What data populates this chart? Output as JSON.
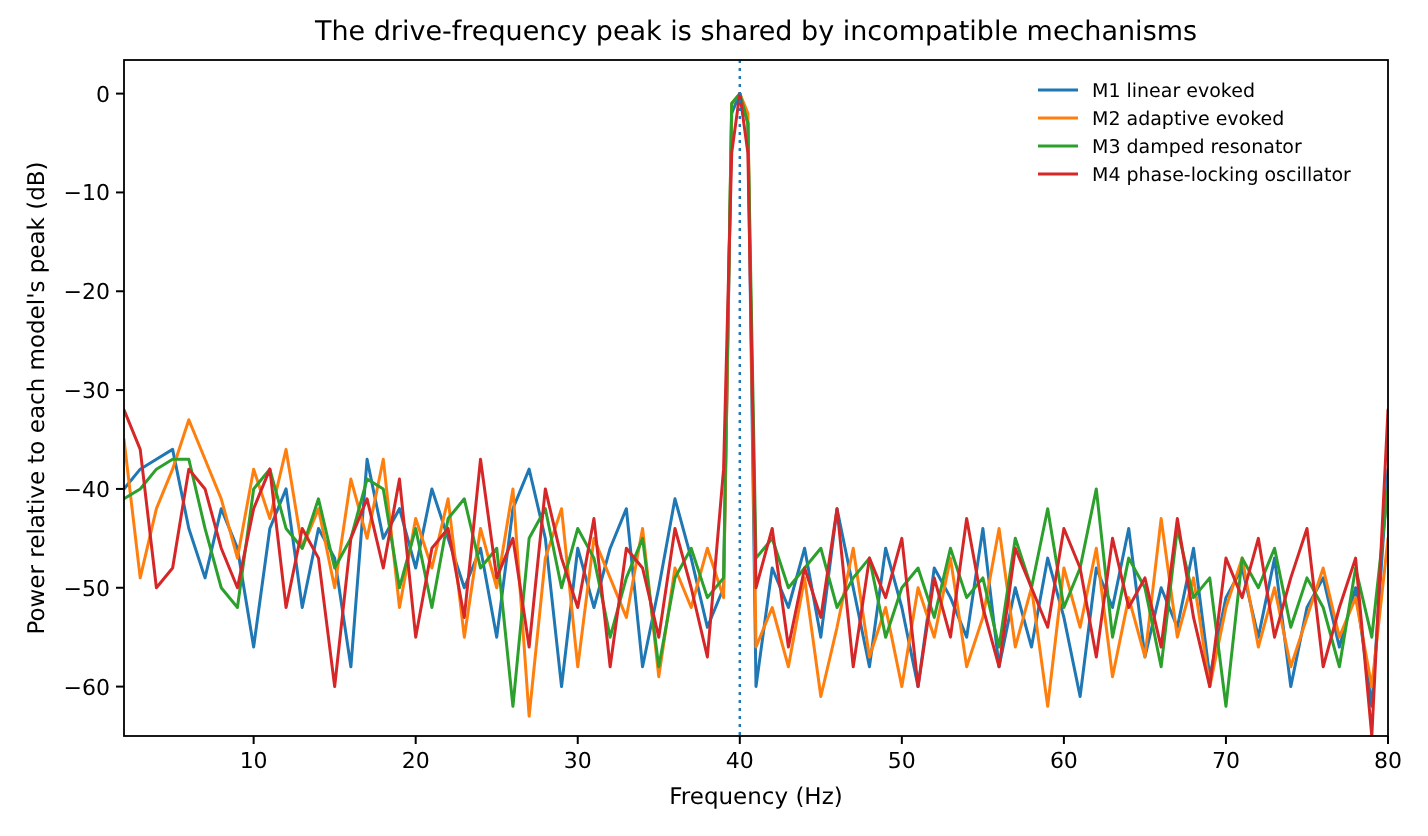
{
  "chart_data": {
    "type": "line",
    "title": "The drive-frequency peak is shared by incompatible mechanisms",
    "xlabel": "Frequency (Hz)",
    "ylabel": "Power relative to each model's peak (dB)",
    "x": [
      2,
      3,
      4,
      5,
      6,
      7,
      8,
      9,
      10,
      11,
      12,
      13,
      14,
      15,
      16,
      17,
      18,
      19,
      20,
      21,
      22,
      23,
      24,
      25,
      26,
      27,
      28,
      29,
      30,
      31,
      32,
      33,
      34,
      35,
      36,
      37,
      38,
      39,
      39.5,
      40,
      40.5,
      41,
      42,
      43,
      44,
      45,
      46,
      47,
      48,
      49,
      50,
      51,
      52,
      53,
      54,
      55,
      56,
      57,
      58,
      59,
      60,
      61,
      62,
      63,
      64,
      65,
      66,
      67,
      68,
      69,
      70,
      71,
      72,
      73,
      74,
      75,
      76,
      77,
      78,
      79,
      80
    ],
    "xlim": [
      2,
      80
    ],
    "xticks": [
      10,
      20,
      30,
      40,
      50,
      60,
      70,
      80
    ],
    "ylim": [
      -65,
      3.4
    ],
    "yticks": [
      0,
      -10,
      -20,
      -30,
      -40,
      -50,
      -60
    ],
    "legend": "top right",
    "line_style": "solid",
    "grid": false,
    "ref_lines": [
      {
        "axis": "x",
        "value": 40,
        "color": "#1f77b4",
        "line_style": "dotted"
      }
    ],
    "series": [
      {
        "name": "M1 linear evoked",
        "color": "#1f77b4",
        "values": [
          -40,
          -38,
          -37,
          -36,
          -44,
          -49,
          -42,
          -46,
          -56,
          -44,
          -40,
          -52,
          -44,
          -47,
          -58,
          -37,
          -45,
          -42,
          -48,
          -40,
          -45,
          -50,
          -46,
          -55,
          -42,
          -38,
          -45,
          -60,
          -46,
          -52,
          -46,
          -42,
          -58,
          -50,
          -41,
          -47,
          -54,
          -50,
          -2,
          0,
          -3,
          -60,
          -48,
          -52,
          -46,
          -55,
          -42,
          -50,
          -58,
          -46,
          -52,
          -60,
          -48,
          -51,
          -55,
          -44,
          -58,
          -50,
          -56,
          -47,
          -53,
          -61,
          -48,
          -52,
          -44,
          -57,
          -50,
          -54,
          -46,
          -59,
          -51,
          -48,
          -55,
          -47,
          -60,
          -52,
          -49,
          -56,
          -50,
          -62,
          -38
        ]
      },
      {
        "name": "M2 adaptive evoked",
        "color": "#ff7f0e",
        "values": [
          -35,
          -49,
          -42,
          -38,
          -33,
          -37,
          -41,
          -47,
          -38,
          -43,
          -36,
          -46,
          -42,
          -50,
          -39,
          -45,
          -37,
          -52,
          -43,
          -48,
          -41,
          -55,
          -44,
          -50,
          -40,
          -63,
          -47,
          -42,
          -58,
          -45,
          -49,
          -53,
          -44,
          -59,
          -48,
          -52,
          -46,
          -51,
          -1,
          0,
          -2,
          -56,
          -52,
          -58,
          -49,
          -61,
          -54,
          -46,
          -57,
          -52,
          -60,
          -50,
          -55,
          -47,
          -58,
          -53,
          -44,
          -56,
          -50,
          -62,
          -48,
          -54,
          -46,
          -59,
          -51,
          -57,
          -43,
          -55,
          -49,
          -60,
          -52,
          -47,
          -56,
          -50,
          -58,
          -53,
          -48,
          -55,
          -51,
          -60,
          -45
        ]
      },
      {
        "name": "M3 damped resonator",
        "color": "#2ca02c",
        "values": [
          -41,
          -40,
          -38,
          -37,
          -37,
          -44,
          -50,
          -52,
          -40,
          -38,
          -44,
          -46,
          -41,
          -48,
          -45,
          -39,
          -40,
          -50,
          -44,
          -52,
          -43,
          -41,
          -48,
          -46,
          -62,
          -45,
          -42,
          -50,
          -44,
          -47,
          -55,
          -49,
          -45,
          -58,
          -49,
          -46,
          -51,
          -49,
          -1,
          0,
          -3,
          -47,
          -45,
          -50,
          -48,
          -46,
          -52,
          -49,
          -47,
          -55,
          -50,
          -48,
          -53,
          -46,
          -51,
          -49,
          -56,
          -45,
          -50,
          -42,
          -52,
          -48,
          -40,
          -55,
          -47,
          -50,
          -58,
          -44,
          -51,
          -49,
          -62,
          -47,
          -50,
          -46,
          -54,
          -49,
          -52,
          -58,
          -48,
          -55,
          -40
        ]
      },
      {
        "name": "M4 phase-locking oscillator",
        "color": "#d62728",
        "values": [
          -32,
          -36,
          -50,
          -48,
          -38,
          -40,
          -46,
          -50,
          -42,
          -38,
          -52,
          -44,
          -47,
          -60,
          -45,
          -41,
          -48,
          -39,
          -55,
          -46,
          -44,
          -53,
          -37,
          -49,
          -45,
          -56,
          -40,
          -47,
          -52,
          -43,
          -58,
          -46,
          -48,
          -55,
          -44,
          -50,
          -57,
          -38,
          -6,
          0,
          -6,
          -50,
          -44,
          -56,
          -48,
          -53,
          -42,
          -58,
          -47,
          -51,
          -45,
          -60,
          -49,
          -55,
          -43,
          -52,
          -58,
          -46,
          -50,
          -54,
          -44,
          -48,
          -57,
          -45,
          -52,
          -49,
          -56,
          -43,
          -53,
          -60,
          -47,
          -51,
          -45,
          -55,
          -49,
          -44,
          -58,
          -52,
          -47,
          -65,
          -32
        ]
      }
    ]
  }
}
